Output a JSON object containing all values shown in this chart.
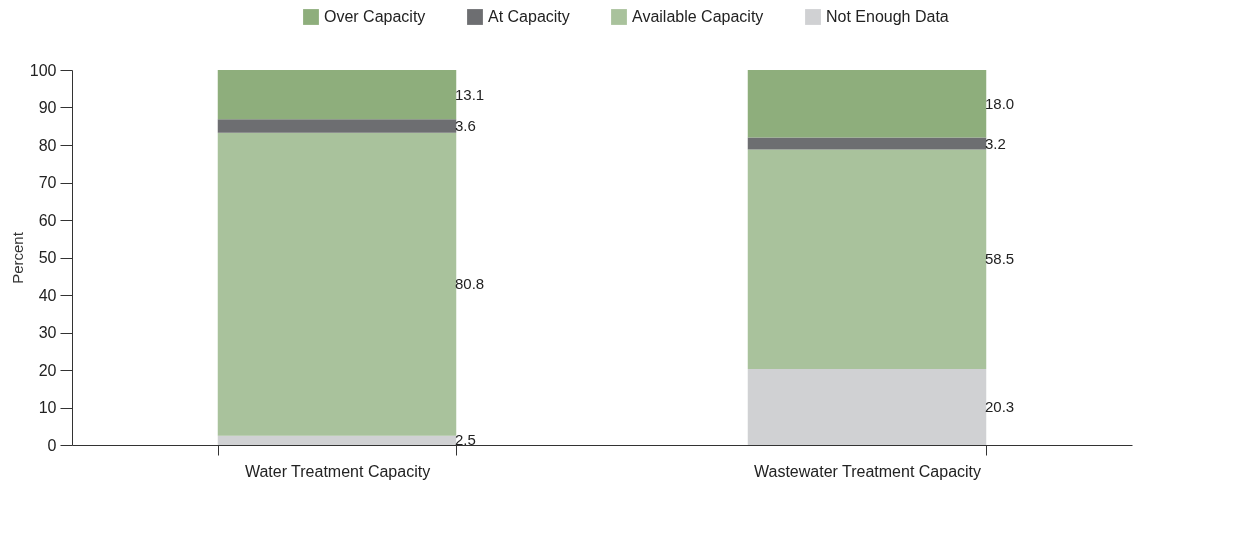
{
  "chart_data": {
    "type": "bar",
    "stacked": true,
    "ylabel": "Percent",
    "categories": [
      "Water Treatment Capacity",
      "Wastewater Treatment Capacity"
    ],
    "series": [
      {
        "name": "Not Enough Data",
        "color": "#d0d1d3",
        "values": [
          2.5,
          20.3
        ],
        "value_labels": [
          "2.5",
          "20.3"
        ]
      },
      {
        "name": "Available Capacity",
        "color": "#a9c29c",
        "values": [
          80.8,
          58.5
        ],
        "value_labels": [
          "80.8",
          "58.5"
        ]
      },
      {
        "name": "At Capacity",
        "color": "#6d6e71",
        "values": [
          3.6,
          3.2
        ],
        "value_labels": [
          "3.6",
          "3.2"
        ]
      },
      {
        "name": "Over Capacity",
        "color": "#8eae7c",
        "values": [
          13.1,
          18.0
        ],
        "value_labels": [
          "13.1",
          "18.0"
        ]
      }
    ],
    "ylim": [
      0,
      100
    ],
    "yticks": [
      0,
      10,
      20,
      30,
      40,
      50,
      60,
      70,
      80,
      90,
      100
    ],
    "grid": false,
    "legend": "top right"
  }
}
